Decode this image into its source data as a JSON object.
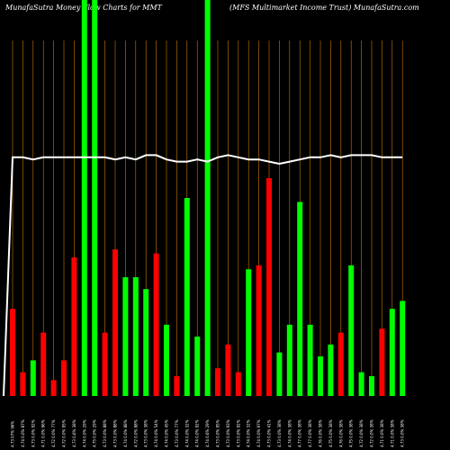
{
  "header": {
    "left": "MunafaSutra  Money Flow  Charts for MMT",
    "right": "(MFS Multimarket Income     Trust) MunafaSutra.com"
  },
  "chart_data": {
    "type": "bar",
    "title": "Money Flow Charts for MMT",
    "ylim": [
      0,
      100
    ],
    "colors": {
      "up": "#00ff00",
      "down": "#ff0000",
      "price": "#ffffff",
      "grid": "#cc7a00",
      "background": "#000000"
    },
    "bars": [
      {
        "x": "4.73 07% 96%",
        "value": 22,
        "dir": "down"
      },
      {
        "x": "4.74 0.0% 87%",
        "value": 6,
        "dir": "down"
      },
      {
        "x": "4.73 0.0% 92%",
        "value": 9,
        "dir": "up"
      },
      {
        "x": "4.71 0.0% 96%",
        "value": 16,
        "dir": "down"
      },
      {
        "x": "4.72 0.0% 77%",
        "value": 4,
        "dir": "down"
      },
      {
        "x": "4.72 0.0% 95%",
        "value": 9,
        "dir": "down"
      },
      {
        "x": "4.73 0.6% 38%",
        "value": 35,
        "dir": "down"
      },
      {
        "x": "4.74 0.0% 29%",
        "value": 100,
        "dir": "up"
      },
      {
        "x": "4.75 0.0% 29%",
        "value": 100,
        "dir": "up"
      },
      {
        "x": "4.73 0.0% 88%",
        "value": 16,
        "dir": "down"
      },
      {
        "x": "4.73 0.0% 88%",
        "value": 37,
        "dir": "down"
      },
      {
        "x": "4.74 0.0% 88%",
        "value": 30,
        "dir": "up"
      },
      {
        "x": "4.72 0.0% 88%",
        "value": 30,
        "dir": "up"
      },
      {
        "x": "4.73 0.0% 38%",
        "value": 27,
        "dir": "up"
      },
      {
        "x": "4.74 0.0% 54%",
        "value": 36,
        "dir": "down"
      },
      {
        "x": "4.74 0.0% 45%",
        "value": 18,
        "dir": "up"
      },
      {
        "x": "4.73 0.0% 77%",
        "value": 5,
        "dir": "down"
      },
      {
        "x": "4.74 0.0% 32%",
        "value": 50,
        "dir": "up"
      },
      {
        "x": "4.74 0.0% 92%",
        "value": 15,
        "dir": "up"
      },
      {
        "x": "4.74 0.6% 29%",
        "value": 100,
        "dir": "up"
      },
      {
        "x": "4.73 0.0% 95%",
        "value": 7,
        "dir": "down"
      },
      {
        "x": "4.73 0.0% 93%",
        "value": 13,
        "dir": "down"
      },
      {
        "x": "4.73 0.0% 92%",
        "value": 6,
        "dir": "down"
      },
      {
        "x": "4.74 0.0% 32%",
        "value": 32,
        "dir": "up"
      },
      {
        "x": "4.74 0.0% 97%",
        "value": 33,
        "dir": "down"
      },
      {
        "x": "4.73 0.0% 41%",
        "value": 55,
        "dir": "down"
      },
      {
        "x": "4.73 0.0% 38%",
        "value": 11,
        "dir": "up"
      },
      {
        "x": "4.74 0.0% 38%",
        "value": 18,
        "dir": "up"
      },
      {
        "x": "4.77 0.0% 38%",
        "value": 49,
        "dir": "up"
      },
      {
        "x": "4.77 0.0% 38%",
        "value": 18,
        "dir": "up"
      },
      {
        "x": "4.76 0.0% 38%",
        "value": 10,
        "dir": "up"
      },
      {
        "x": "4.75 0.0% 38%",
        "value": 13,
        "dir": "up"
      },
      {
        "x": "4.76 0.0% 38%",
        "value": 16,
        "dir": "down"
      },
      {
        "x": "4.75 0.0% 38%",
        "value": 33,
        "dir": "up"
      },
      {
        "x": "4.72 0.0% 38%",
        "value": 6,
        "dir": "up"
      },
      {
        "x": "4.72 0.0% 38%",
        "value": 5,
        "dir": "up"
      },
      {
        "x": "4.71 0.0% 38%",
        "value": 17,
        "dir": "down"
      },
      {
        "x": "4.71 0.0% 38%",
        "value": 22,
        "dir": "up"
      },
      {
        "x": "4.73 0.0% 38%",
        "value": 24,
        "dir": "up"
      }
    ],
    "price": [
      98,
      98,
      97,
      98,
      98,
      98,
      98,
      98,
      98,
      98,
      97,
      98,
      97,
      99,
      99,
      97,
      96,
      96,
      97,
      96,
      98,
      99,
      98,
      97,
      97,
      96,
      95,
      96,
      97,
      98,
      98,
      99,
      98,
      99,
      99,
      99,
      98,
      98,
      98
    ],
    "price_start": [
      0,
      98
    ]
  }
}
